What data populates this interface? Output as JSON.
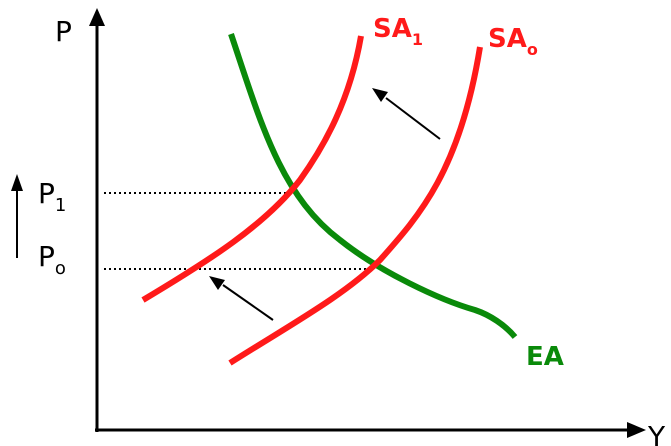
{
  "axes": {
    "y_label": "P",
    "x_label": "Y"
  },
  "price_levels": [
    {
      "base": "P",
      "sub": "1"
    },
    {
      "base": "P",
      "sub": "o"
    }
  ],
  "curves": [
    {
      "id": "ea",
      "base": "EA",
      "sub": "",
      "color": "#0a8a0a"
    },
    {
      "id": "sa1",
      "base": "SA",
      "sub": "1",
      "color": "#ff1a1a"
    },
    {
      "id": "sa0",
      "base": "SA",
      "sub": "o",
      "color": "#ff1a1a"
    }
  ],
  "colors": {
    "axis": "#000000",
    "guide_dots": "#000000",
    "shift_arrows": "#000000"
  }
}
